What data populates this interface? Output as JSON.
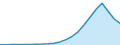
{
  "chart_data": {
    "type": "area",
    "x": [
      0,
      1,
      2,
      3,
      4,
      5,
      6,
      7,
      8,
      9,
      10,
      11,
      12,
      13,
      14,
      15,
      16,
      17,
      18,
      19,
      20
    ],
    "values": [
      0.2,
      0.2,
      0.25,
      0.3,
      0.35,
      0.4,
      0.5,
      0.6,
      0.8,
      1.2,
      2.0,
      3.5,
      5.5,
      8.5,
      13.0,
      18.0,
      23.0,
      27.0,
      22.0,
      17.0,
      14.0
    ],
    "xlim": [
      0,
      20
    ],
    "ylim": [
      0,
      29.16
    ],
    "colors": [
      "#2196c8",
      "#c8e8f8"
    ],
    "tick_labels": false
  }
}
